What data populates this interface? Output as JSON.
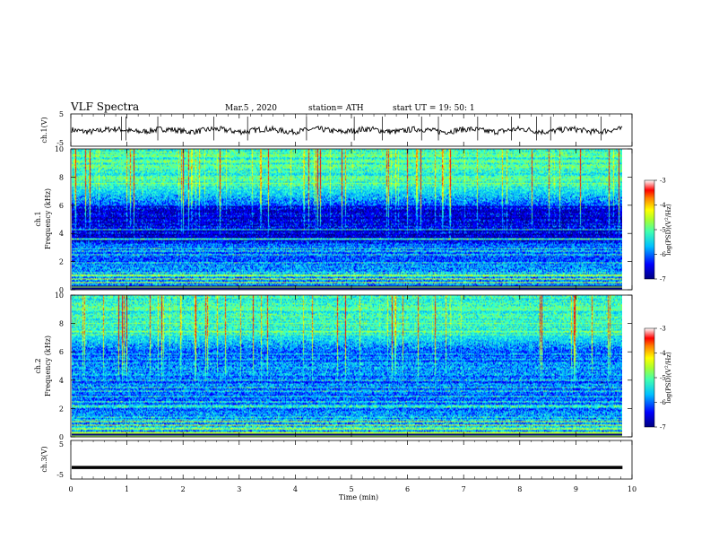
{
  "header": {
    "title": "VLF  Spectra",
    "date": "Mar.5  , 2020",
    "station": "station= ATH",
    "start": "start  UT  =   19: 50: 1"
  },
  "chart_data": [
    {
      "type": "line",
      "panel": "ch1-waveform",
      "ylabel": "ch.1(V)",
      "yticks": [
        "5",
        "-5"
      ],
      "ylim": [
        -5,
        5
      ],
      "xlim": [
        0,
        9.83
      ],
      "baseline": -0.1,
      "spike_times": [
        0.9,
        0.98,
        1.55,
        2.55,
        3.15,
        4.2,
        5.05,
        5.55,
        6.25,
        6.55,
        7.25,
        7.85,
        8.3,
        8.55,
        9.45
      ],
      "color": "#000000"
    },
    {
      "type": "heatmap",
      "panel": "ch1-spectrogram",
      "ylabel": "ch.1\nFrequency  (kHz)",
      "yticks": [
        "0",
        "2",
        "4",
        "6",
        "8",
        "10"
      ],
      "ylim": [
        0,
        10
      ],
      "xlim": [
        0,
        9.83
      ],
      "colorbar": {
        "label": "log(PSD)(V²/Hz)",
        "ticks": [
          "-3",
          "-4",
          "-5",
          "-6",
          "-7"
        ],
        "range": [
          -7,
          -3
        ]
      },
      "colors": [
        "#00007f",
        "#0000ff",
        "#00b0ff",
        "#30ffd0",
        "#a0ff40",
        "#ffff00",
        "#ff7f00",
        "#ff0000",
        "#ffffff"
      ]
    },
    {
      "type": "heatmap",
      "panel": "ch2-spectrogram",
      "ylabel": "ch.2\nFrequency  (kHz)",
      "yticks": [
        "0",
        "2",
        "4",
        "6",
        "8",
        "10"
      ],
      "ylim": [
        0,
        10
      ],
      "xlim": [
        0,
        9.83
      ],
      "colorbar": {
        "label": "log(PSD)(V²/Hz)",
        "ticks": [
          "-3",
          "-4",
          "-5",
          "-6",
          "-7"
        ],
        "range": [
          -7,
          -3
        ]
      }
    },
    {
      "type": "line",
      "panel": "ch3-waveform",
      "ylabel": "ch.3(V)",
      "yticks": [
        "5",
        "-5"
      ],
      "ylim": [
        -5,
        5
      ],
      "xlim": [
        0,
        9.83
      ],
      "baseline": -2.0,
      "color": "#000000"
    }
  ],
  "xaxis": {
    "label": "Time  (min)",
    "ticks": [
      "0",
      "1",
      "2",
      "3",
      "4",
      "5",
      "6",
      "7",
      "8",
      "9",
      "10"
    ],
    "range": [
      0,
      10
    ]
  }
}
